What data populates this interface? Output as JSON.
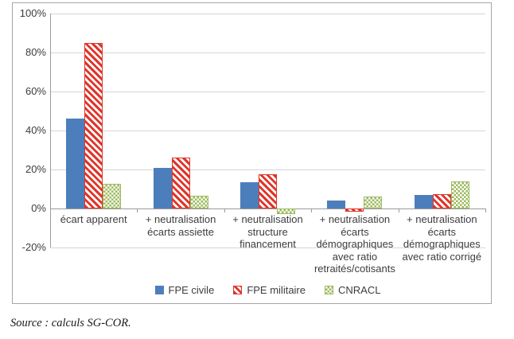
{
  "chart_data": {
    "type": "bar",
    "title": "",
    "xlabel": "",
    "ylabel": "",
    "categories": [
      [
        "écart apparent"
      ],
      [
        "+ neutralisation",
        "écarts assiette"
      ],
      [
        "+ neutralisation",
        "structure",
        "financement"
      ],
      [
        "+ neutralisation",
        "écarts",
        "démographiques",
        "avec ratio",
        "retraités/cotisants"
      ],
      [
        "+ neutralisation",
        "écarts",
        "démographiques",
        "avec ratio corrigé"
      ]
    ],
    "series": [
      {
        "name": "FPE civile",
        "pattern": "solid",
        "color": "#4d7ebc",
        "values": [
          46,
          21,
          13.5,
          4,
          7
        ]
      },
      {
        "name": "FPE militaire",
        "pattern": "diagonal-stripes",
        "color": "#df352a",
        "values": [
          85,
          26,
          17.5,
          -1.5,
          7.5
        ]
      },
      {
        "name": "CNRACL",
        "pattern": "checker",
        "color": "#9cba5d",
        "values": [
          12.5,
          6.5,
          -3,
          6,
          14
        ]
      }
    ],
    "ylim": [
      -20,
      100
    ],
    "ytick_labels": [
      "100%",
      "80%",
      "60%",
      "40%",
      "20%",
      "0%",
      "-20%"
    ],
    "ytick_values": [
      100,
      80,
      60,
      40,
      20,
      0,
      -20
    ],
    "grid": true,
    "legend_position": "bottom",
    "gridline_color": "#d6d6d6",
    "axis_color": "#9b9b9b"
  },
  "source_note": "Source : calculs SG-COR."
}
